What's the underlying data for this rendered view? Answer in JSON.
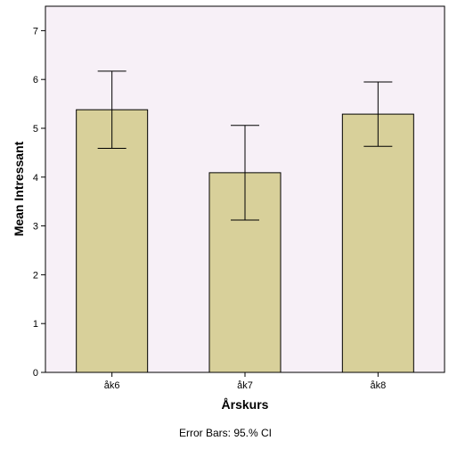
{
  "chart_data": {
    "type": "bar",
    "title": "",
    "xlabel": "Årskurs",
    "ylabel": "Mean Intressant",
    "categories": [
      "åk6",
      "åk7",
      "åk8"
    ],
    "values": [
      5.38,
      4.09,
      5.29
    ],
    "error_bars": {
      "label": "Error Bars: 95.% CI",
      "lower": [
        4.59,
        3.12,
        4.63
      ],
      "upper": [
        6.17,
        5.06,
        5.95
      ]
    },
    "ylim": [
      0,
      7.5
    ],
    "yticks": [
      "0",
      "1",
      "2",
      "3",
      "4",
      "5",
      "6",
      "7"
    ],
    "grid": false,
    "legend": "none",
    "colors": {
      "plot_background": "#f7f0f7",
      "bar_fill": "#d8d09a",
      "bar_stroke": "#000000"
    }
  }
}
